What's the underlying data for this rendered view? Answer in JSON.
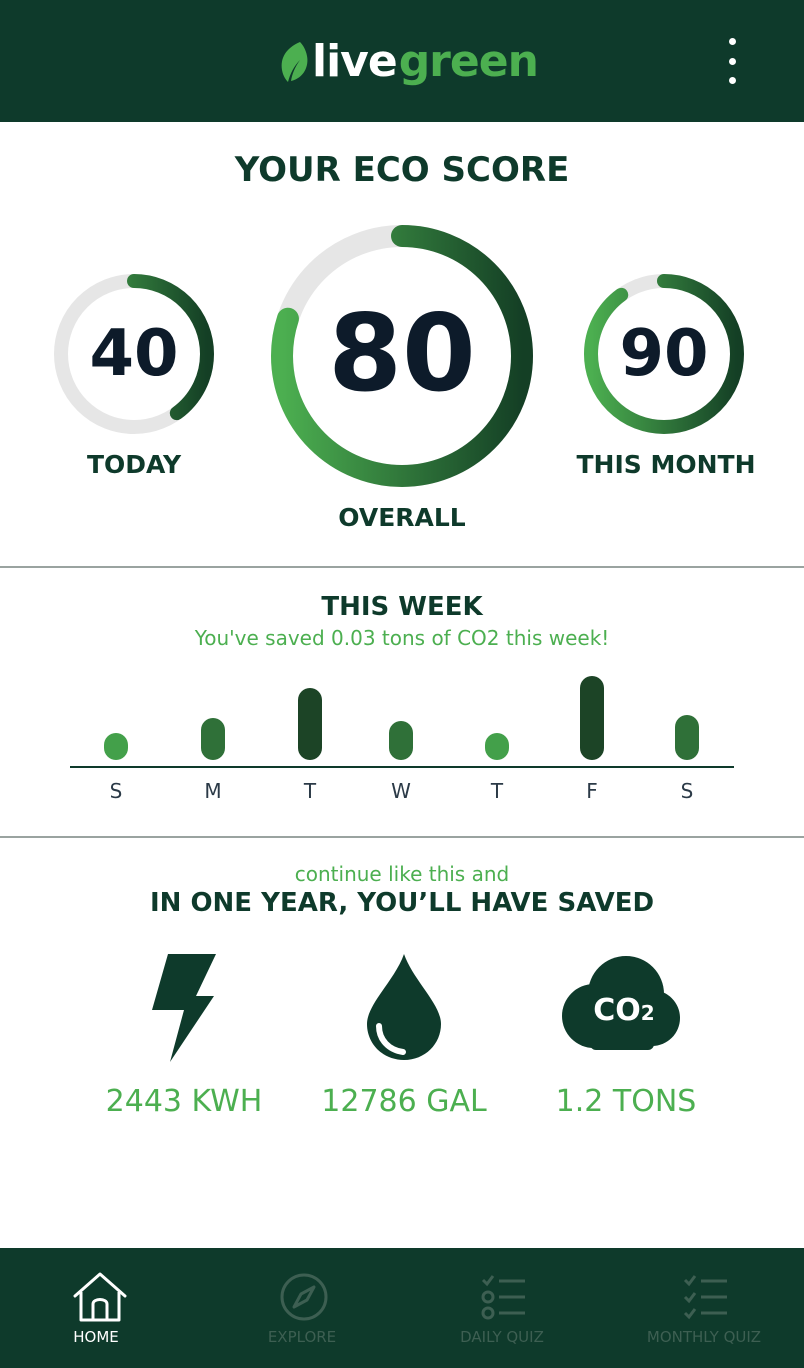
{
  "header": {
    "logo_part1": "live",
    "logo_part2": "green",
    "menu_icon": "more-vertical-icon"
  },
  "eco_score": {
    "title": "YOUR ECO SCORE",
    "today": {
      "value": "40",
      "label": "TODAY"
    },
    "overall": {
      "value": "80",
      "label": "OVERALL"
    },
    "month": {
      "value": "90",
      "label": "THIS MONTH"
    }
  },
  "week": {
    "title": "THIS WEEK",
    "subtitle": "You've saved 0.03 tons of CO2 this week!",
    "days": [
      "S",
      "M",
      "T",
      "W",
      "T",
      "F",
      "S"
    ],
    "levels": [
      0.05,
      0.3,
      0.8,
      0.25,
      0.05,
      1.0,
      0.35
    ]
  },
  "projection": {
    "intro": "continue like this and",
    "title": "IN ONE YEAR, YOU’LL HAVE SAVED",
    "energy": {
      "icon": "lightning-bolt-icon",
      "value": "2443 KWH"
    },
    "water": {
      "icon": "water-drop-icon",
      "value": "12786 GAL"
    },
    "co2": {
      "icon": "co2-cloud-icon",
      "value": "1.2 TONS",
      "icon_text": "CO",
      "icon_sub": "2"
    }
  },
  "nav": {
    "home": "HOME",
    "explore": "EXPLORE",
    "daily_quiz": "DAILY QUIZ",
    "monthly_quiz": "MONTHLY QUIZ"
  },
  "colors": {
    "brand_dark": "#0e3a2b",
    "accent_green": "#4caf50",
    "text_dark": "#0d1b2a",
    "track_grey": "#e6e6e6",
    "nav_inactive": "#3d5f52"
  }
}
